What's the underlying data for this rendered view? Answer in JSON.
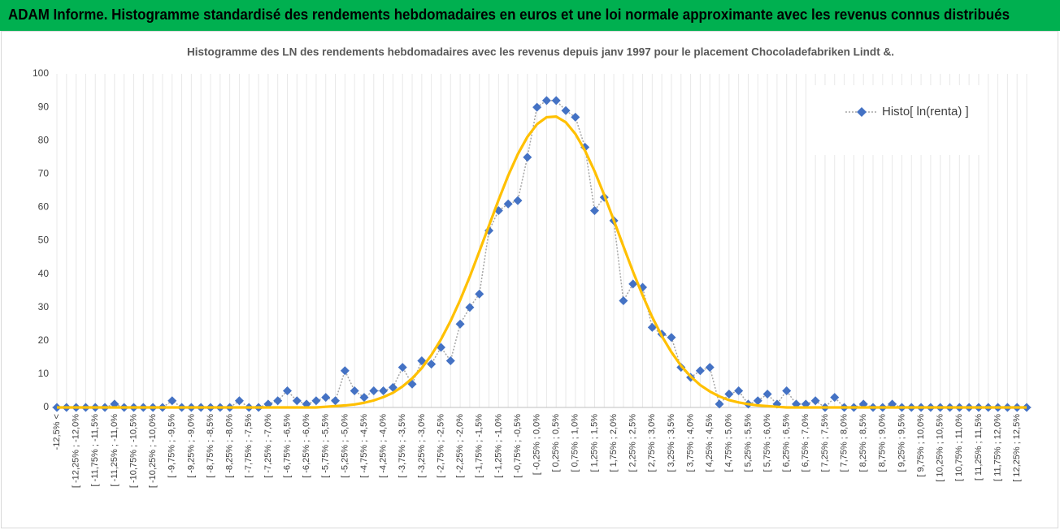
{
  "header": "ADAM Informe. Histogramme standardisé des rendements hebdomadaires en euros et une loi normale approximante avec les revenus connus distribués",
  "chart_data": {
    "type": "line",
    "title": "Histogramme des LN des rendements hebdomadaires avec les revenus depuis janv 1997 pour le placement Chocoladefabriken Lindt &.",
    "categories": [
      "-12,5% <",
      null,
      "[ -12,25% ; -12,0%",
      null,
      "[ -11,75% ; -11,5%",
      null,
      "[ -11,25% ; -11,0%",
      null,
      "[ -10,75% ; -10,5%",
      null,
      "[ -10,25% ; -10,0%",
      null,
      "[ -9,75% ; -9,5%",
      null,
      "[ -9,25% ; -9,0%",
      null,
      "[ -8,75% ; -8,5%",
      null,
      "[ -8,25% ; -8,0%",
      null,
      "[ -7,75% ; -7,5%",
      null,
      "[ -7,25% ; -7,0%",
      null,
      "[ -6,75% ; -6,5%",
      null,
      "[ -6,25% ; -6,0%",
      null,
      "[ -5,75% ; -5,5%",
      null,
      "[ -5,25% ; -5,0%",
      null,
      "[ -4,75% ; -4,5%",
      null,
      "[ -4,25% ; -4,0%",
      null,
      "[ -3,75% ; -3,5%",
      null,
      "[ -3,25% ; -3,0%",
      null,
      "[ -2,75% ; -2,5%",
      null,
      "[ -2,25% ; -2,0%",
      null,
      "[ -1,75% ; -1,5%",
      null,
      "[ -1,25% ; -1,0%",
      null,
      "[ -0,75% ; -0,5%",
      null,
      "[ -0,25% ; 0,0%",
      null,
      "[ 0,25% ; 0,5%",
      null,
      "[ 0,75% ; 1,0%",
      null,
      "[ 1,25% ; 1,5%",
      null,
      "[ 1,75% ; 2,0%",
      null,
      "[ 2,25% ; 2,5%",
      null,
      "[ 2,75% ; 3,0%",
      null,
      "[ 3,25% ; 3,5%",
      null,
      "[ 3,75% ; 4,0%",
      null,
      "[ 4,25% ; 4,5%",
      null,
      "[ 4,75% ; 5,0%",
      null,
      "[ 5,25% ; 5,5%",
      null,
      "[ 5,75% ; 6,0%",
      null,
      "[ 6,25% ; 6,5%",
      null,
      "[ 6,75% ; 7,0%",
      null,
      "[ 7,25% ; 7,5%",
      null,
      "[ 7,75% ; 8,0%",
      null,
      "[ 8,25% ; 8,5%",
      null,
      "[ 8,75% ; 9,0%",
      null,
      "[ 9,25% ; 9,5%",
      null,
      "[ 9,75% ; 10,0%",
      null,
      "[ 10,25% ; 10,5%",
      null,
      "[ 10,75% ; 11,0%",
      null,
      "[ 11,25% ; 11,5%",
      null,
      "[ 11,75% ; 12,0%",
      null,
      "[ 12,25% ; 12,5%",
      null
    ],
    "series": [
      {
        "name": "Histo[ ln(renta) ]",
        "color": "#4472c4",
        "line_color": "#a5a5a5",
        "values": [
          0,
          0,
          0,
          0,
          0,
          0,
          1,
          0,
          0,
          0,
          0,
          0,
          2,
          0,
          0,
          0,
          0,
          0,
          0,
          2,
          0,
          0,
          1,
          2,
          5,
          2,
          1,
          2,
          3,
          2,
          11,
          5,
          3,
          5,
          5,
          6,
          12,
          7,
          14,
          13,
          18,
          14,
          25,
          30,
          34,
          53,
          59,
          61,
          62,
          75,
          90,
          92,
          92,
          89,
          87,
          78,
          59,
          63,
          56,
          32,
          37,
          36,
          24,
          22,
          21,
          12,
          9,
          11,
          12,
          1,
          4,
          5,
          1,
          2,
          4,
          1,
          5,
          1,
          1,
          2,
          0,
          3,
          0,
          0,
          1,
          0,
          0,
          1,
          0,
          0,
          0,
          0,
          0,
          0,
          0,
          0,
          0,
          0,
          0,
          0,
          0,
          0
        ]
      },
      {
        "color": "#ffc000",
        "values": [
          0,
          0,
          0,
          0,
          0,
          0,
          0,
          0,
          0,
          0,
          0,
          0,
          0,
          0,
          0,
          0,
          0,
          0,
          0,
          0,
          0,
          0,
          0,
          0,
          0,
          0,
          0,
          0,
          0.2,
          0.4,
          0.6,
          0.9,
          1.4,
          2.1,
          3.1,
          4.4,
          6.3,
          8.7,
          11.8,
          15.7,
          20.4,
          25.9,
          32.2,
          39.2,
          46.8,
          54.5,
          62.2,
          69.5,
          75.9,
          81.1,
          84.9,
          87.0,
          87.2,
          85.5,
          82.0,
          77.0,
          70.8,
          63.7,
          56.1,
          48.3,
          40.7,
          33.6,
          27.1,
          21.4,
          16.6,
          12.5,
          9.3,
          6.7,
          4.8,
          3.3,
          2.2,
          1.5,
          1.0,
          0.6,
          0.4,
          0.2,
          0,
          0,
          0,
          0,
          0,
          0,
          0,
          0,
          0,
          0,
          0,
          0,
          0,
          0,
          0,
          0,
          0,
          0,
          0,
          0,
          0,
          0,
          0,
          0,
          0,
          0
        ]
      }
    ],
    "ylim": [
      0,
      100
    ],
    "yticks": [
      0,
      10,
      20,
      30,
      40,
      50,
      60,
      70,
      80,
      90,
      100
    ],
    "grid": "x",
    "legend": "top-right"
  }
}
